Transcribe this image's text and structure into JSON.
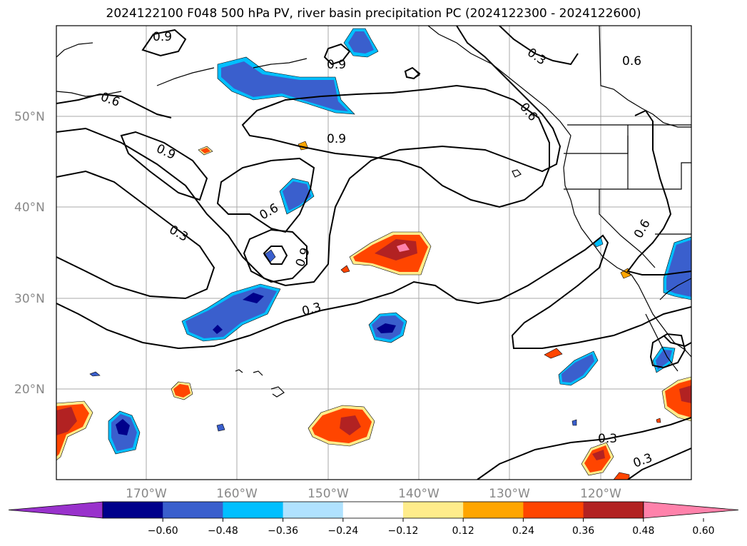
{
  "title": "2024122100 F048 500 hPa PV, river basin precipitation PC (2024122300 - 2024122600)",
  "map": {
    "lat_labels": [
      "50°N",
      "40°N",
      "30°N",
      "20°N"
    ],
    "lon_labels": [
      "170°W",
      "160°W",
      "150°W",
      "140°W",
      "130°W",
      "120°W"
    ],
    "contour_labels": [
      "0.9",
      "0.9",
      "0.3",
      "0.6",
      "0.6",
      "0.9",
      "0.9",
      "0.6",
      "0.3",
      "0.6",
      "0.9",
      "0.3",
      "0.6",
      "0.3",
      "0.3"
    ]
  },
  "colorbar": {
    "ticks": [
      "−0.60",
      "−0.48",
      "−0.36",
      "−0.24",
      "−0.12",
      "0.12",
      "0.24",
      "0.36",
      "0.48",
      "0.60"
    ],
    "colors": [
      "#9932cc",
      "#00008b",
      "#3a5fcd",
      "#00bfff",
      "#b0e2ff",
      "#ffffff",
      "#ffec8b",
      "#ffa500",
      "#ff4500",
      "#b22222",
      "#ff82ab"
    ]
  }
}
